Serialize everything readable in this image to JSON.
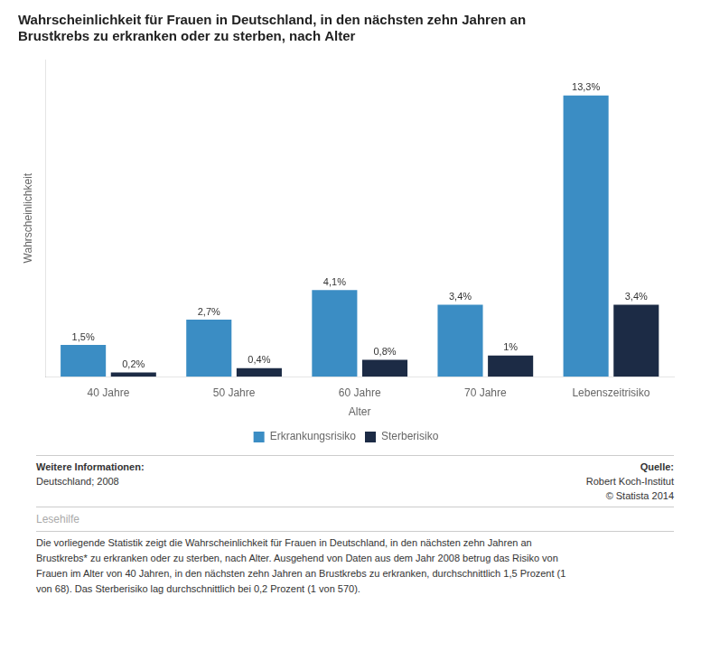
{
  "chart_data": {
    "type": "bar",
    "title": [
      "Wahrscheinlichkeit für Frauen in Deutschland, in den nächsten zehn Jahren an",
      "Brustkrebs zu erkranken oder zu sterben, nach Alter"
    ],
    "categories": [
      "40 Jahre",
      "50 Jahre",
      "60 Jahre",
      "70 Jahre",
      "Lebenszeitrisiko"
    ],
    "series": [
      {
        "name": "Erkrankungsrisiko",
        "color": "#3B8DC4",
        "values": [
          1.5,
          2.7,
          4.1,
          3.4,
          13.3
        ],
        "value_labels": [
          "1,5%",
          "2,7%",
          "4,1%",
          "3,4%",
          "13,3%"
        ]
      },
      {
        "name": "Sterberisiko",
        "color": "#1C2B45",
        "values": [
          0.2,
          0.4,
          0.8,
          1.0,
          3.4
        ],
        "value_labels": [
          "0,2%",
          "0,4%",
          "0,8%",
          "1%",
          "3,4%"
        ]
      }
    ],
    "xlabel": "Alter",
    "ylabel": "Wahrscheinlichkeit",
    "ylim": [
      0,
      15
    ],
    "yticks": [],
    "grid": false,
    "legend": "bottom",
    "data_labels": true,
    "tick_labels": "x",
    "annotations": [
      "Weitere Informationen:",
      "Deutschland; 2008",
      "Quelle:",
      "Robert Koch-Institut",
      "© Statista 2014",
      "Lesehilfe",
      "Die vorliegende Statistik zeigt die Wahrscheinlichkeit für Frauen in Deutschland, in den nächsten zehn Jahren an\nBrustkrebs* zu erkranken oder zu sterben, nach Alter. Ausgehend von Daten aus dem Jahr 2008 betrug das Risiko von\nFrauen im Alter von 40 Jahren, in den nächsten zehn Jahren an Brustkrebs zu erkranken, durchschnittlich 1,5 Prozent (1\nvon 68). Das Sterberisiko lag durchschnittlich bei 0,2 Prozent (1 von 570)."
    ]
  }
}
